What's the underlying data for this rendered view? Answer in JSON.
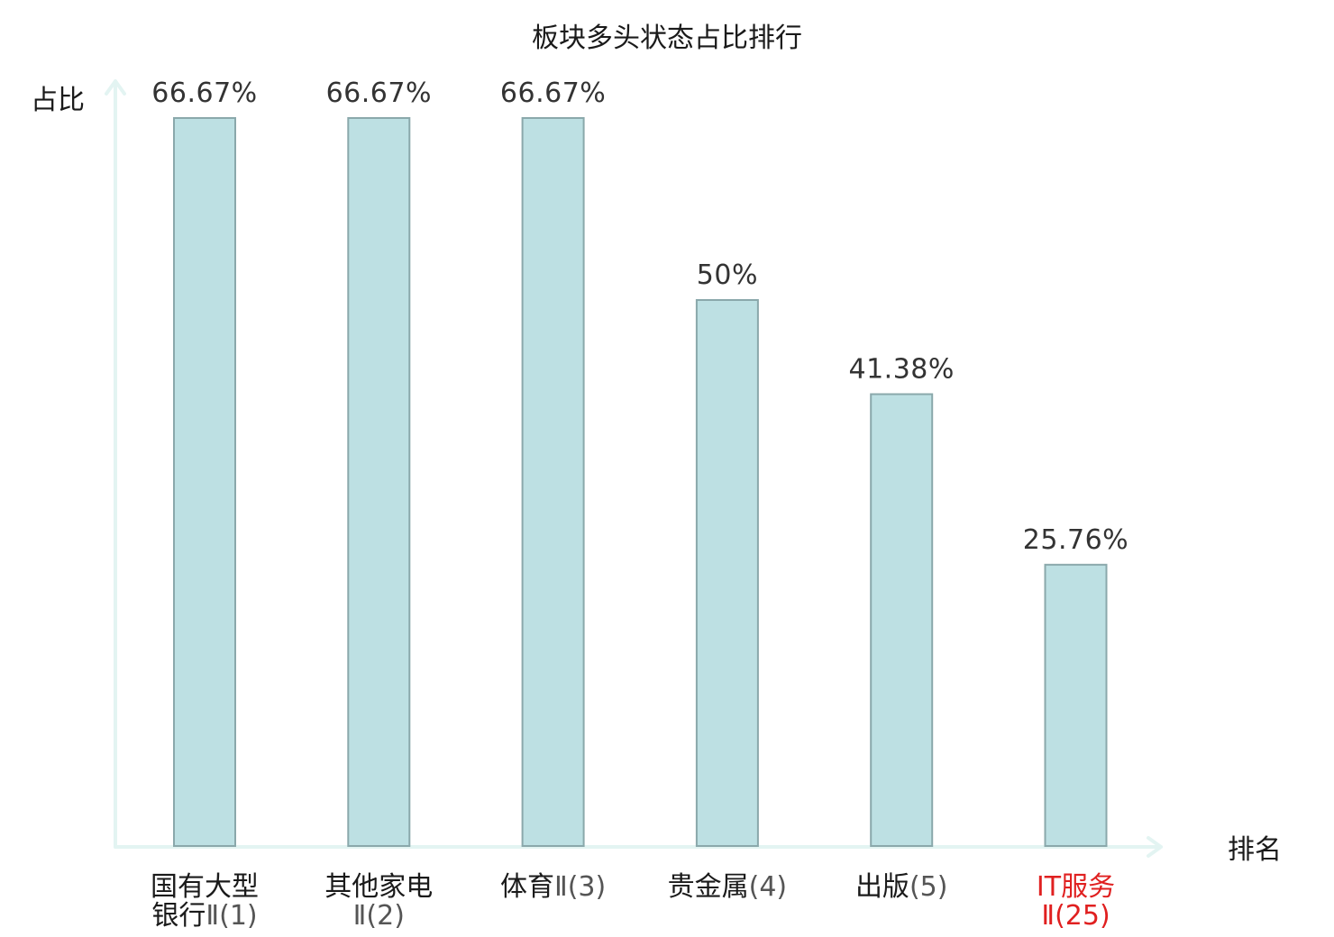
{
  "chart_data": {
    "type": "bar",
    "title": "板块多头状态占比排行",
    "ylabel": "占比",
    "xlabel": "排名",
    "categories": [
      {
        "lines": [
          {
            "name": "国有大型",
            "rank": ""
          },
          {
            "name": "银行",
            "rank": "Ⅱ(1)"
          }
        ],
        "highlight": false
      },
      {
        "lines": [
          {
            "name": "其他家电",
            "rank": ""
          },
          {
            "name": "",
            "rank": "Ⅱ(2)"
          }
        ],
        "highlight": false
      },
      {
        "lines": [
          {
            "name": "体育",
            "rank": "Ⅱ(3)"
          }
        ],
        "highlight": false
      },
      {
        "lines": [
          {
            "name": "贵金属",
            "rank": "(4)"
          }
        ],
        "highlight": false
      },
      {
        "lines": [
          {
            "name": "出版",
            "rank": "(5)"
          }
        ],
        "highlight": false
      },
      {
        "lines": [
          {
            "name": "IT服务",
            "rank": ""
          },
          {
            "name": "",
            "rank": "Ⅱ(25)"
          }
        ],
        "highlight": true
      }
    ],
    "values": [
      66.67,
      66.67,
      66.67,
      50,
      41.38,
      25.76
    ],
    "value_labels": [
      "66.67%",
      "66.67%",
      "66.67%",
      "50%",
      "41.38%",
      "25.76%"
    ],
    "ylim": [
      0,
      66.67
    ],
    "grid": false,
    "colors": {
      "bar_fill": "#bde0e3",
      "bar_stroke": "#8aa8ab",
      "axis": "#e3f4f2",
      "highlight": "#e02020"
    }
  }
}
